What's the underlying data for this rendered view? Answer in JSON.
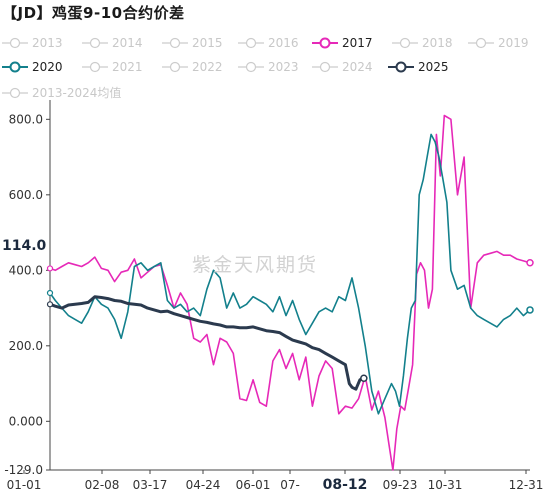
{
  "title": "【JD】鸡蛋9-10合约价差",
  "watermark": "紫金天风期货",
  "current_value_label": "114.0",
  "legend": [
    {
      "label": "2013",
      "color": "#cccccc",
      "active": false
    },
    {
      "label": "2014",
      "color": "#cccccc",
      "active": false
    },
    {
      "label": "2015",
      "color": "#cccccc",
      "active": false
    },
    {
      "label": "2016",
      "color": "#cccccc",
      "active": false
    },
    {
      "label": "2017",
      "color": "#e629b8",
      "active": true
    },
    {
      "label": "2018",
      "color": "#cccccc",
      "active": false
    },
    {
      "label": "2019",
      "color": "#cccccc",
      "active": false
    },
    {
      "label": "2020",
      "color": "#13808c",
      "active": true
    },
    {
      "label": "2021",
      "color": "#cccccc",
      "active": false
    },
    {
      "label": "2022",
      "color": "#cccccc",
      "active": false
    },
    {
      "label": "2023",
      "color": "#cccccc",
      "active": false
    },
    {
      "label": "2024",
      "color": "#cccccc",
      "active": false
    },
    {
      "label": "2025",
      "color": "#2b3a4e",
      "active": true
    },
    {
      "label": "2013-2024均值",
      "color": "#cccccc",
      "active": false
    }
  ],
  "chart_data": {
    "type": "line",
    "ylim": [
      -129,
      830
    ],
    "y_ticks": [
      "800.0",
      "600.0",
      "400.0",
      "200.0",
      "0.000",
      "-129.0"
    ],
    "x_ticks": [
      "01-01",
      "02-08",
      "03-17",
      "04-24",
      "06-01",
      "07-",
      "08-12",
      "09-23",
      "10-31",
      "12-31"
    ],
    "highlight_x_tick": "08-12",
    "series": [
      {
        "name": "2017",
        "color": "#e629b8",
        "width": 1.6,
        "x": [
          1,
          5,
          10,
          15,
          20,
          25,
          30,
          35,
          40,
          45,
          50,
          55,
          60,
          65,
          70,
          75,
          80,
          85,
          90,
          95,
          100,
          105,
          110,
          115,
          120,
          125,
          130,
          135,
          140,
          145,
          150,
          155,
          160,
          165,
          170,
          175,
          180,
          185,
          190,
          195,
          200,
          205,
          210,
          215,
          220,
          225,
          230,
          235,
          240,
          245,
          250,
          255,
          258,
          261,
          264,
          267,
          270,
          273,
          276,
          279,
          282,
          285,
          288,
          291,
          294,
          297,
          300,
          305,
          310,
          315,
          320,
          325,
          330,
          335,
          340,
          345,
          350,
          355,
          360,
          365
        ],
        "y": [
          405,
          400,
          410,
          420,
          415,
          410,
          420,
          435,
          405,
          400,
          370,
          395,
          400,
          430,
          380,
          395,
          410,
          415,
          360,
          300,
          340,
          310,
          220,
          210,
          230,
          150,
          220,
          210,
          180,
          60,
          55,
          110,
          50,
          40,
          160,
          190,
          140,
          180,
          110,
          170,
          40,
          120,
          160,
          140,
          20,
          40,
          35,
          60,
          120,
          30,
          80,
          10,
          -60,
          -129,
          -20,
          40,
          30,
          90,
          150,
          390,
          420,
          400,
          300,
          350,
          760,
          650,
          810,
          800,
          600,
          700,
          300,
          420,
          440,
          445,
          450,
          440,
          440,
          430,
          425,
          420
        ]
      },
      {
        "name": "2020",
        "color": "#13808c",
        "width": 1.6,
        "x": [
          1,
          5,
          10,
          15,
          20,
          25,
          30,
          35,
          40,
          45,
          50,
          55,
          60,
          65,
          70,
          75,
          80,
          85,
          90,
          95,
          100,
          105,
          110,
          115,
          120,
          125,
          130,
          135,
          140,
          145,
          150,
          155,
          160,
          165,
          170,
          175,
          180,
          185,
          190,
          195,
          200,
          205,
          210,
          215,
          220,
          225,
          230,
          235,
          240,
          245,
          250,
          255,
          260,
          263,
          266,
          269,
          272,
          275,
          278,
          281,
          284,
          287,
          290,
          293,
          296,
          299,
          302,
          305,
          310,
          315,
          320,
          325,
          330,
          335,
          340,
          345,
          350,
          355,
          360,
          365
        ],
        "y": [
          340,
          320,
          300,
          280,
          270,
          260,
          290,
          330,
          310,
          300,
          270,
          220,
          290,
          410,
          420,
          400,
          410,
          420,
          320,
          300,
          310,
          290,
          300,
          280,
          350,
          400,
          380,
          300,
          340,
          300,
          310,
          330,
          320,
          310,
          290,
          330,
          280,
          320,
          270,
          230,
          260,
          290,
          300,
          290,
          330,
          320,
          380,
          300,
          200,
          80,
          20,
          60,
          100,
          80,
          40,
          120,
          220,
          300,
          320,
          600,
          640,
          700,
          760,
          740,
          700,
          640,
          580,
          400,
          350,
          360,
          300,
          280,
          270,
          260,
          250,
          270,
          280,
          300,
          280,
          295
        ]
      },
      {
        "name": "2025",
        "color": "#2b3a4e",
        "width": 3,
        "x": [
          1,
          5,
          10,
          15,
          20,
          25,
          30,
          35,
          40,
          45,
          50,
          55,
          60,
          65,
          70,
          75,
          80,
          85,
          90,
          95,
          100,
          105,
          110,
          115,
          120,
          125,
          130,
          135,
          140,
          145,
          150,
          155,
          160,
          165,
          170,
          175,
          180,
          185,
          190,
          195,
          200,
          205,
          210,
          215,
          220,
          225,
          228,
          230,
          233,
          236,
          239
        ],
        "y": [
          310,
          305,
          300,
          308,
          310,
          312,
          315,
          330,
          328,
          325,
          320,
          318,
          312,
          310,
          308,
          300,
          295,
          290,
          292,
          285,
          280,
          275,
          270,
          265,
          262,
          258,
          255,
          250,
          250,
          248,
          248,
          250,
          245,
          240,
          238,
          235,
          225,
          215,
          210,
          205,
          195,
          190,
          180,
          170,
          160,
          150,
          100,
          90,
          85,
          110,
          114
        ]
      }
    ]
  }
}
